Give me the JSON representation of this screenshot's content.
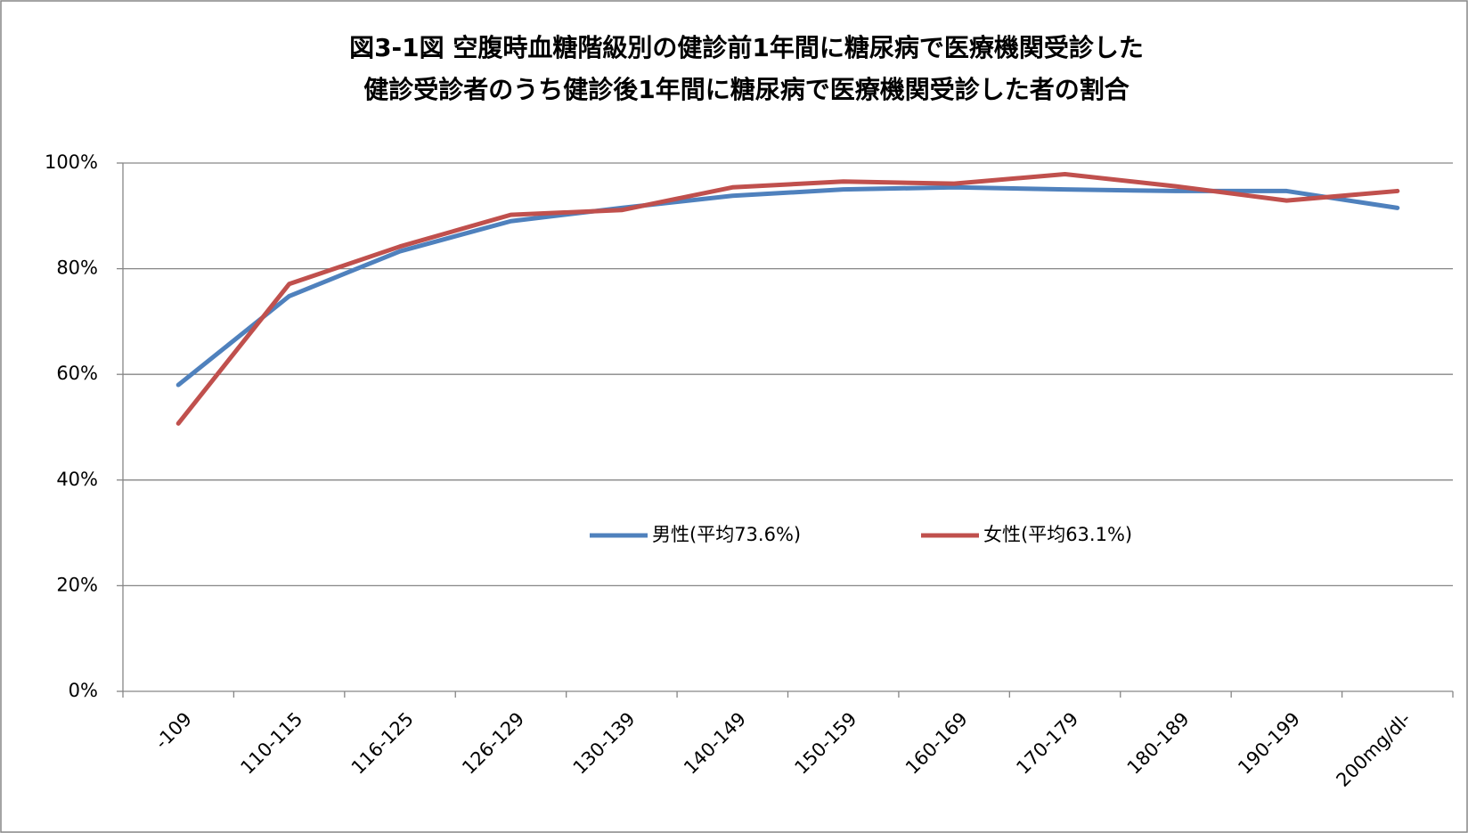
{
  "chart_data": {
    "type": "line",
    "title": [
      "図3-1図 空腹時血糖階級別の健診前1年間に糖尿病で医療機関受診した",
      "健診受診者のうち健診後1年間に糖尿病で医療機関受診した者の割合"
    ],
    "categories": [
      "-109",
      "110-115",
      "116-125",
      "126-129",
      "130-139",
      "140-149",
      "150-159",
      "160-169",
      "170-179",
      "180-189",
      "190-199",
      "200mg/dl-"
    ],
    "series": [
      {
        "name": "男性(平均73.6%)",
        "color": "#4f81bd",
        "values": [
          58.0,
          74.8,
          83.3,
          89.0,
          91.5,
          93.8,
          95.0,
          95.4,
          95.0,
          94.7,
          94.7,
          91.5
        ]
      },
      {
        "name": "女性(平均63.1%)",
        "color": "#c0504d",
        "values": [
          50.7,
          77.1,
          84.2,
          90.2,
          91.1,
          95.4,
          96.5,
          96.1,
          97.9,
          95.6,
          92.9,
          94.7
        ]
      }
    ],
    "ylim": [
      0,
      100
    ],
    "yticks": [
      {
        "value": 0,
        "label": "0%"
      },
      {
        "value": 20,
        "label": "20%"
      },
      {
        "value": 40,
        "label": "40%"
      },
      {
        "value": 60,
        "label": "60%"
      },
      {
        "value": 80,
        "label": "80%"
      },
      {
        "value": 100,
        "label": "100%"
      }
    ],
    "grid": true
  }
}
